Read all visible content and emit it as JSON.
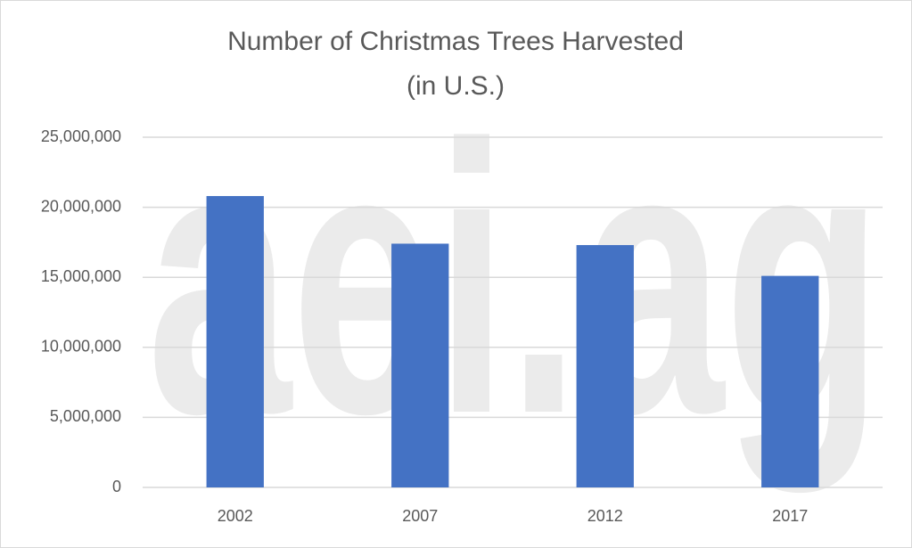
{
  "chart_data": {
    "type": "bar",
    "title": [
      "Number of Christmas Trees Harvested",
      "(in U.S.)"
    ],
    "watermark": "aei.ag",
    "categories": [
      "2002",
      "2007",
      "2012",
      "2017"
    ],
    "values": [
      20800000,
      17400000,
      17300000,
      15100000
    ],
    "color": "#4472c4",
    "ylim": [
      0,
      25000000
    ],
    "yticks": [
      0,
      {
        "value": 5000000,
        "label": "5,000,000"
      },
      {
        "value": 10000000,
        "label": "10,000,000"
      },
      {
        "value": 15000000,
        "label": "15,000,000"
      },
      {
        "value": 20000000,
        "label": "20,000,000"
      },
      {
        "value": 25000000,
        "label": "25,000,000"
      }
    ],
    "grid": true
  }
}
